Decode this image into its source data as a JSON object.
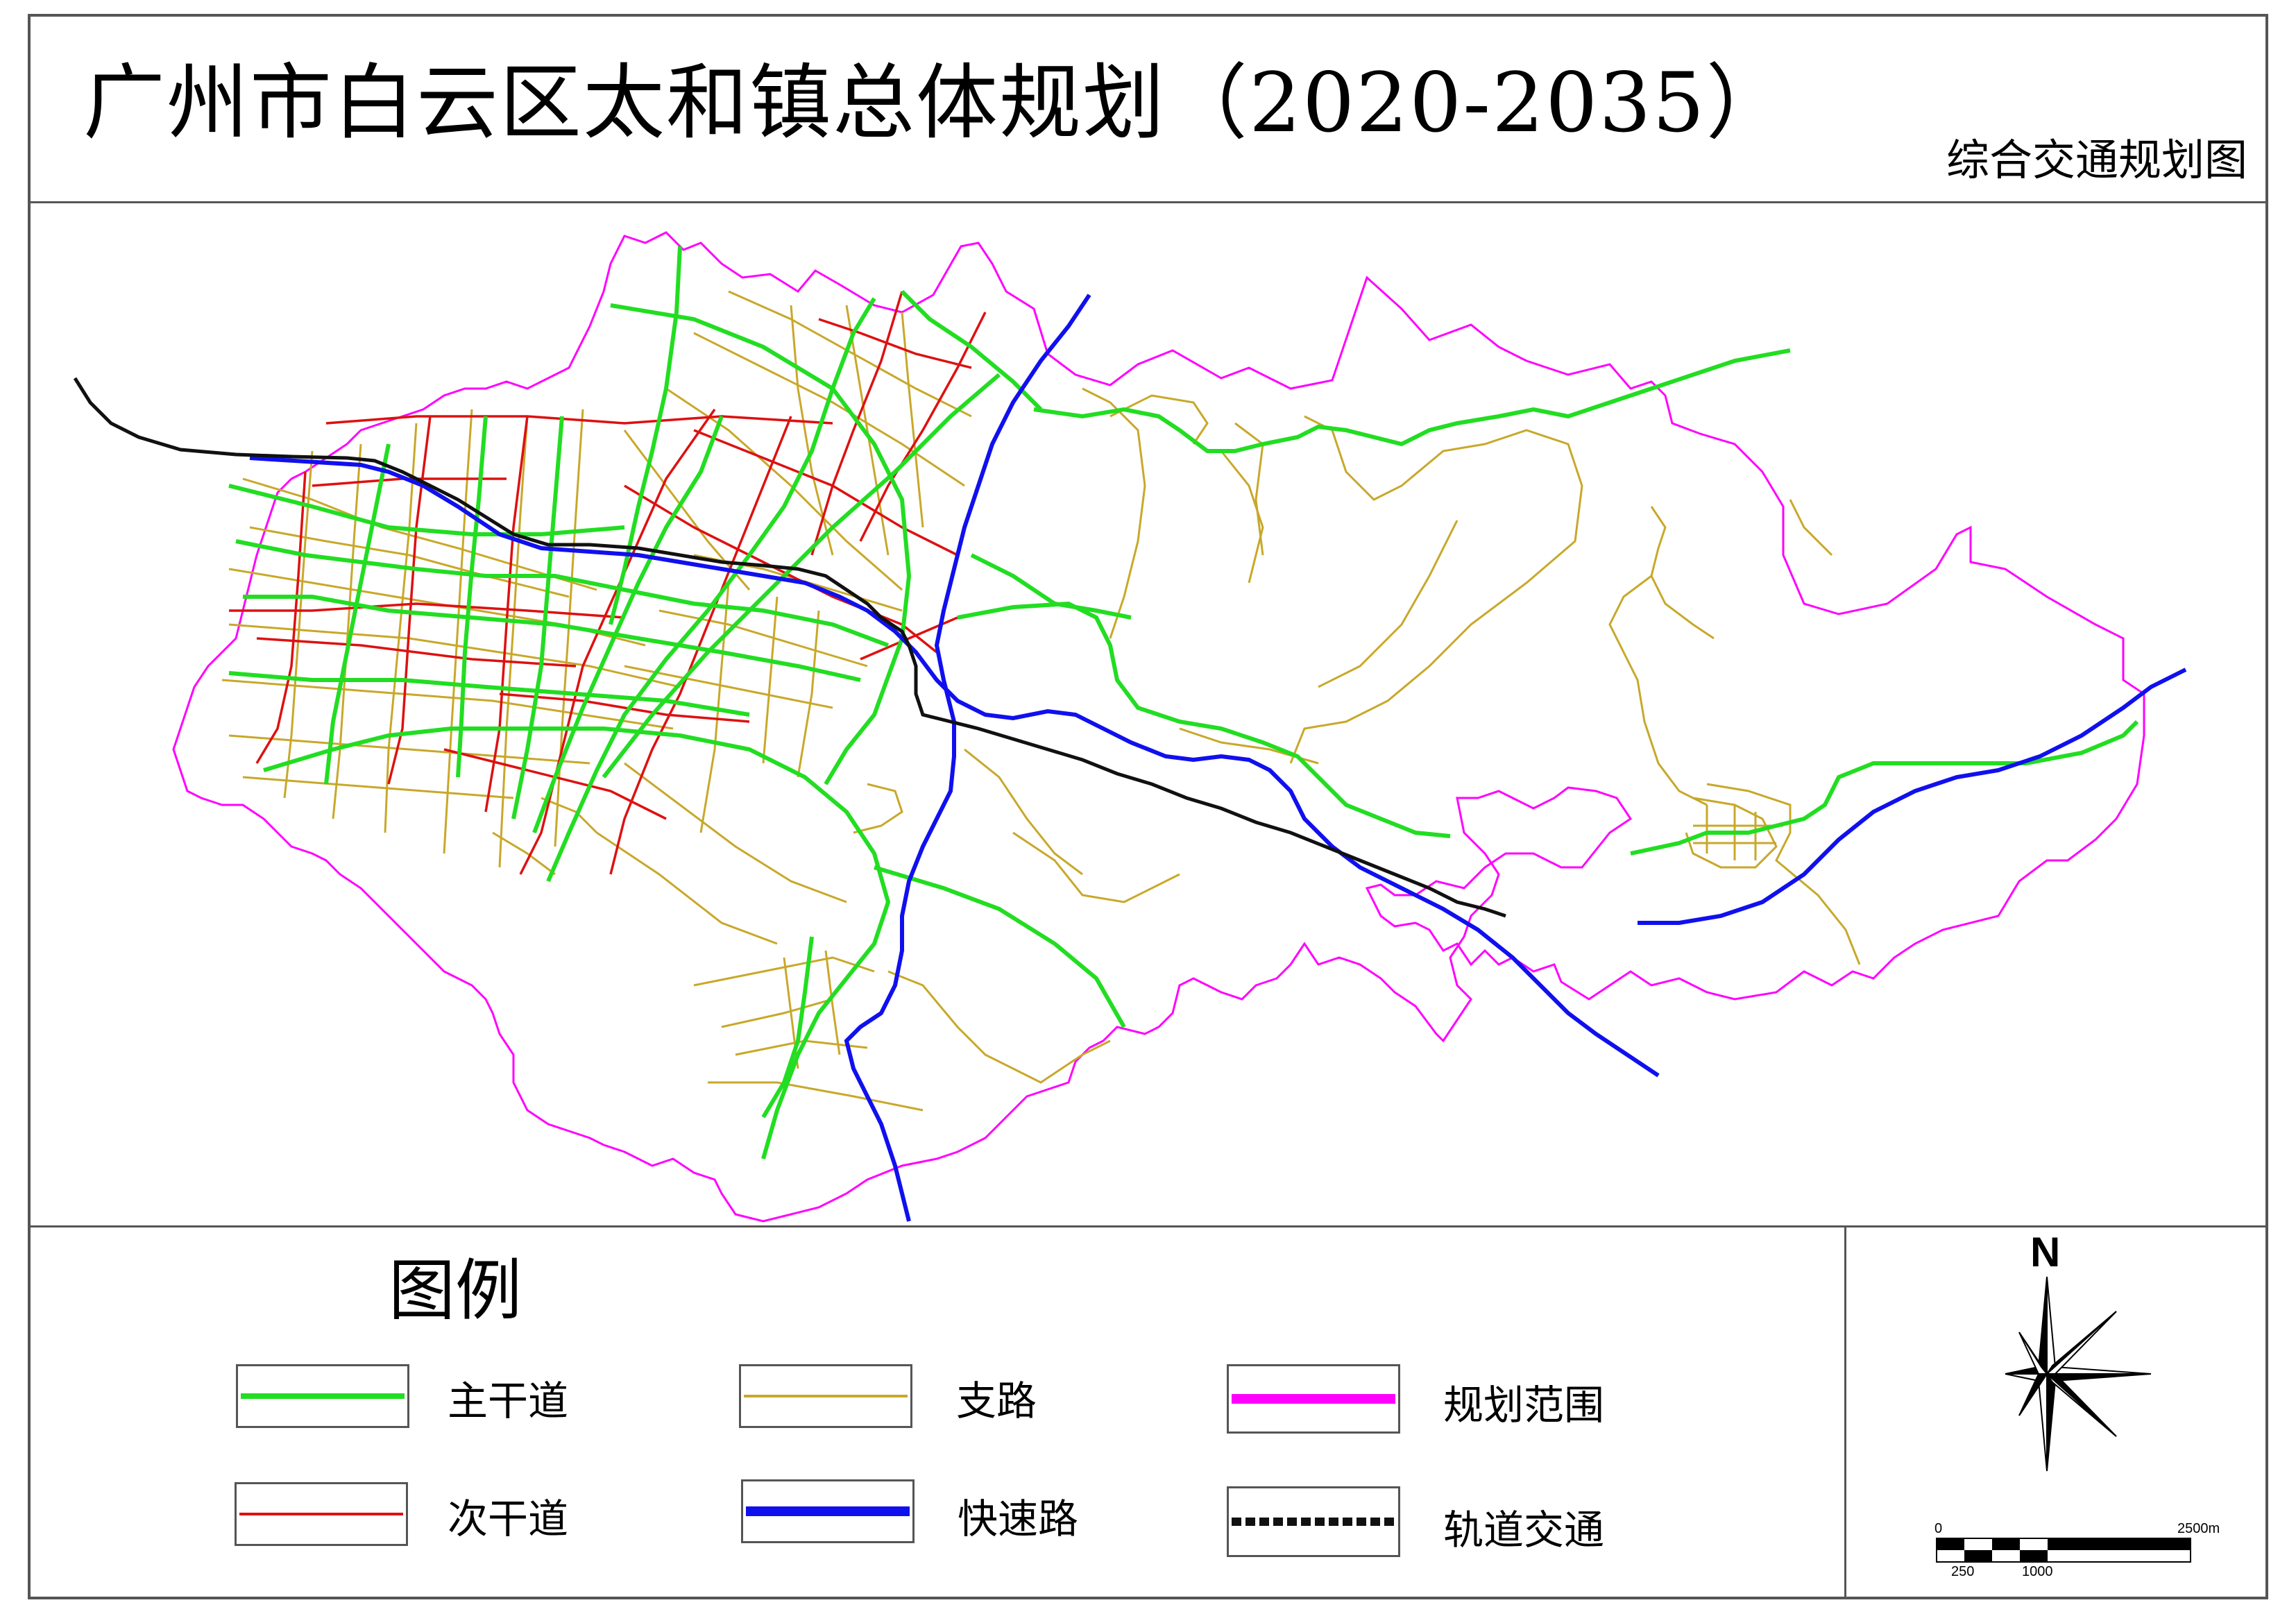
{
  "header": {
    "title": "广州市白云区太和镇总体规划（2020-2035）",
    "subtitle": "综合交通规划图"
  },
  "legend": {
    "title": "图例",
    "items": [
      {
        "label": "主干道",
        "color": "#22dd22",
        "style": "solid-medium"
      },
      {
        "label": "支路",
        "color": "#c8a82a",
        "style": "solid-thin"
      },
      {
        "label": "规划范围",
        "color": "#ff00ff",
        "style": "solid-thick"
      },
      {
        "label": "次干道",
        "color": "#dd1111",
        "style": "solid-thin"
      },
      {
        "label": "快速路",
        "color": "#1010ee",
        "style": "solid-thick"
      },
      {
        "label": "轨道交通",
        "color": "#111111",
        "style": "dashed-thick"
      }
    ]
  },
  "compass": {
    "label": "N",
    "icon": "north-arrow-icon"
  },
  "scale_bar": {
    "top_labels": [
      "0",
      "2500m"
    ],
    "bottom_labels": [
      "250",
      "1000"
    ]
  },
  "colors": {
    "boundary": "#ff00ff",
    "main_road": "#22dd22",
    "secondary_road": "#dd1111",
    "branch_road": "#c8a82a",
    "expressway": "#1010ee",
    "rail": "#111111",
    "frame": "#555555"
  }
}
